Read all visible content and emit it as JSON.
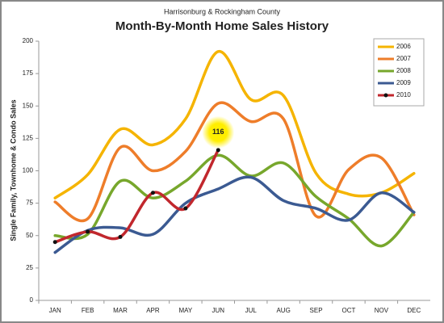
{
  "chart_data": {
    "type": "line",
    "title": "Month-By-Month Home Sales History",
    "subtitle": "Harrisonburg & Rockingham County",
    "y_label": "Single Family, Townhome & Condo Sales",
    "categories": [
      "JAN",
      "FEB",
      "MAR",
      "APR",
      "MAY",
      "JUN",
      "JUL",
      "AUG",
      "SEP",
      "OCT",
      "NOV",
      "DEC"
    ],
    "series": [
      {
        "name": "2006",
        "color": "#f5b400",
        "values": [
          79,
          97,
          132,
          120,
          140,
          192,
          155,
          158,
          98,
          82,
          83,
          98
        ]
      },
      {
        "name": "2007",
        "color": "#ee7d2a",
        "values": [
          76,
          63,
          118,
          100,
          115,
          152,
          138,
          140,
          65,
          101,
          110,
          66
        ]
      },
      {
        "name": "2008",
        "color": "#77a72c",
        "values": [
          50,
          51,
          92,
          79,
          92,
          112,
          96,
          106,
          80,
          63,
          42,
          68
        ]
      },
      {
        "name": "2009",
        "color": "#3b5a92",
        "values": [
          37,
          54,
          56,
          51,
          75,
          86,
          95,
          77,
          71,
          62,
          83,
          68
        ]
      },
      {
        "name": "2010",
        "color": "#c1272d",
        "values": [
          45,
          53,
          49,
          83,
          71,
          116,
          null,
          null,
          null,
          null,
          null,
          null
        ],
        "markers": true
      }
    ],
    "ylim": [
      0,
      200
    ],
    "yticks": [
      0,
      25,
      50,
      75,
      100,
      125,
      150,
      175,
      200
    ],
    "legend": "upper right",
    "smooth": true
  }
}
